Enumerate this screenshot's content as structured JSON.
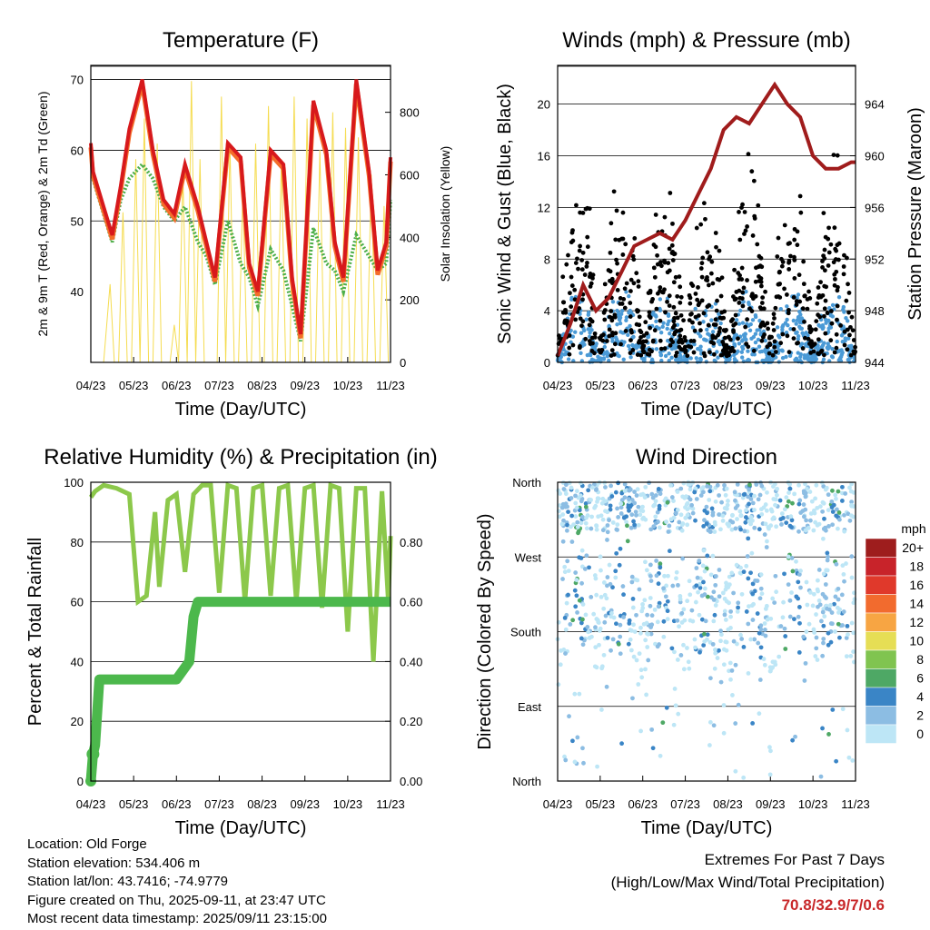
{
  "panels": {
    "temperature": {
      "title": "Temperature (F)",
      "ylabel_left": "2m & 9m T (Red, Orange) & 2m Td (Green)",
      "ylabel_right": "Solar Insolation (Yellow)",
      "xlabel": "Time (Day/UTC)"
    },
    "winds": {
      "title": "Winds (mph) & Pressure (mb)",
      "ylabel_left": "Sonic Wind & Gust (Blue, Black)",
      "ylabel_right": "Station Pressure (Maroon)",
      "xlabel": "Time (Day/UTC)"
    },
    "humidity": {
      "title": "Relative Humidity (%) & Precipitation (in)",
      "ylabel_left": "Percent & Total Rainfall",
      "xlabel": "Time (Day/UTC)"
    },
    "direction": {
      "title": "Wind Direction",
      "ylabel_left": "Direction (Colored By Speed)",
      "xlabel": "Time (Day/UTC)",
      "legend_title": "mph"
    }
  },
  "colors": {
    "temp_2m": "#d7191c",
    "temp_9m": "#f46d2a",
    "dewpoint": "#4daf4a",
    "insolation": "#f5dc50",
    "gust": "#000000",
    "wind": "#4a9ad6",
    "pressure": "#a01c1c",
    "rh": "#8cc84b",
    "precip": "#4cb84c"
  },
  "chart_data": [
    {
      "type": "line",
      "panel": "temperature",
      "x_ticks": [
        "04/23",
        "05/23",
        "06/23",
        "07/23",
        "08/23",
        "09/23",
        "10/23",
        "11/23"
      ],
      "xlim": [
        0,
        7
      ],
      "ylim": [
        30,
        72
      ],
      "yticks_left": [
        40,
        50,
        60,
        70
      ],
      "ylim_right": [
        0,
        950
      ],
      "yticks_right": [
        0,
        200,
        400,
        600,
        800
      ],
      "series": [
        {
          "key": "temp",
          "axis": "left",
          "x": [
            0,
            0.05,
            0.3,
            0.5,
            0.7,
            0.9,
            1.2,
            1.45,
            1.7,
            1.95,
            2.2,
            2.5,
            2.7,
            2.9,
            3.2,
            3.5,
            3.7,
            3.9,
            4.2,
            4.5,
            4.7,
            4.9,
            5.2,
            5.5,
            5.7,
            5.9,
            6.2,
            6.5,
            6.7,
            6.9,
            7.0
          ],
          "y": [
            61,
            57,
            52,
            48,
            55,
            63,
            70,
            60,
            53,
            51,
            58,
            52,
            47,
            42,
            61,
            59,
            44,
            40,
            60,
            58,
            42,
            34,
            67,
            60,
            47,
            42,
            70,
            57,
            43,
            47,
            59
          ]
        },
        {
          "key": "dewpoint",
          "axis": "left",
          "x": [
            0,
            0.05,
            0.3,
            0.5,
            0.7,
            0.9,
            1.2,
            1.45,
            1.7,
            1.95,
            2.2,
            2.5,
            2.7,
            2.9,
            3.2,
            3.5,
            3.7,
            3.9,
            4.2,
            4.5,
            4.7,
            4.9,
            5.2,
            5.5,
            5.7,
            5.9,
            6.2,
            6.5,
            6.7,
            6.9,
            7.0
          ],
          "y": [
            60,
            56,
            51,
            47,
            53,
            56,
            58,
            56,
            52,
            50,
            52,
            47,
            45,
            41,
            50,
            44,
            42,
            38,
            46,
            43,
            38,
            33,
            49,
            44,
            43,
            40,
            48,
            45,
            43,
            44,
            53
          ]
        },
        {
          "key": "insolation",
          "axis": "right",
          "x": [
            0.1,
            0.3,
            0.45,
            0.55,
            0.65,
            0.75,
            0.85,
            0.95,
            1.05,
            1.15,
            1.25,
            1.35,
            1.45,
            1.55,
            1.65,
            1.75,
            1.85,
            1.95,
            2.05,
            2.15,
            2.25,
            2.35,
            2.45,
            2.55,
            2.65,
            2.75,
            2.85,
            2.95,
            3.05,
            3.15,
            3.25,
            3.35,
            3.45,
            3.55,
            3.65,
            3.75,
            3.85,
            3.95,
            4.05,
            4.15,
            4.25,
            4.35,
            4.45,
            4.55,
            4.65,
            4.75,
            4.85,
            4.95,
            5.05,
            5.15,
            5.25,
            5.35,
            5.45,
            5.55,
            5.65,
            5.75,
            5.85,
            5.95,
            6.05,
            6.15,
            6.25,
            6.35,
            6.45,
            6.55,
            6.65,
            6.75,
            6.85,
            6.95
          ],
          "y": [
            0,
            0,
            250,
            0,
            0,
            480,
            0,
            0,
            650,
            0,
            780,
            0,
            0,
            700,
            0,
            0,
            0,
            120,
            0,
            600,
            0,
            900,
            0,
            650,
            0,
            0,
            0,
            0,
            850,
            0,
            700,
            0,
            0,
            550,
            0,
            0,
            700,
            0,
            0,
            820,
            0,
            0,
            650,
            0,
            0,
            850,
            0,
            0,
            780,
            0,
            0,
            680,
            0,
            0,
            800,
            0,
            0,
            750,
            0,
            0,
            720,
            0,
            0,
            600,
            0,
            0,
            500,
            0
          ]
        }
      ]
    },
    {
      "type": "line",
      "panel": "winds",
      "x_ticks": [
        "04/23",
        "05/23",
        "06/23",
        "07/23",
        "08/23",
        "09/23",
        "10/23",
        "11/23"
      ],
      "xlim": [
        0,
        7
      ],
      "ylim": [
        0,
        23
      ],
      "yticks_left": [
        0,
        4,
        8,
        12,
        16,
        20
      ],
      "ylim_right": [
        944,
        967
      ],
      "yticks_right": [
        944,
        948,
        952,
        956,
        960,
        964
      ],
      "series": [
        {
          "key": "pressure",
          "axis": "right",
          "x": [
            0,
            0.3,
            0.6,
            0.9,
            1.2,
            1.5,
            1.8,
            2.1,
            2.4,
            2.7,
            3.0,
            3.3,
            3.6,
            3.9,
            4.2,
            4.5,
            4.8,
            5.1,
            5.4,
            5.7,
            6.0,
            6.3,
            6.6,
            6.9,
            7.0
          ],
          "y": [
            944.5,
            947,
            950,
            948,
            949,
            951,
            953,
            953.5,
            954,
            953.5,
            955,
            957,
            959,
            962,
            963,
            962.5,
            964,
            965.5,
            964,
            963,
            960,
            959,
            959,
            959.5,
            959.5
          ]
        }
      ]
    },
    {
      "type": "line",
      "panel": "humidity",
      "x_ticks": [
        "04/23",
        "05/23",
        "06/23",
        "07/23",
        "08/23",
        "09/23",
        "10/23",
        "11/23"
      ],
      "xlim": [
        0,
        7
      ],
      "ylim": [
        0,
        100
      ],
      "yticks_left": [
        0,
        20,
        40,
        60,
        80,
        100
      ],
      "ylim_right": [
        0.0,
        1.0
      ],
      "yticks_right": [
        0.0,
        0.2,
        0.4,
        0.6,
        0.8
      ],
      "ytick_labels_right": [
        "0.00",
        "0.20",
        "0.40",
        "0.60",
        "0.80"
      ],
      "series": [
        {
          "key": "rh",
          "axis": "left",
          "x": [
            0,
            0.1,
            0.3,
            0.6,
            0.9,
            1.1,
            1.3,
            1.5,
            1.6,
            1.8,
            2.0,
            2.2,
            2.4,
            2.6,
            2.8,
            3.0,
            3.2,
            3.4,
            3.6,
            3.8,
            4.0,
            4.2,
            4.4,
            4.6,
            4.8,
            5.0,
            5.2,
            5.4,
            5.6,
            5.8,
            6.0,
            6.2,
            6.4,
            6.6,
            6.8,
            6.95,
            7.0
          ],
          "y": [
            95,
            97,
            99,
            98,
            96,
            60,
            62,
            90,
            65,
            94,
            96,
            70,
            96,
            99,
            99,
            63,
            99,
            98,
            60,
            98,
            99,
            62,
            98,
            99,
            60,
            98,
            99,
            58,
            99,
            98,
            50,
            98,
            98,
            40,
            97,
            60,
            82
          ]
        },
        {
          "key": "precip",
          "axis": "right",
          "x": [
            0,
            0.05,
            0.1,
            0.2,
            1.0,
            2.0,
            2.3,
            2.4,
            2.5,
            3.0,
            4.0,
            5.0,
            6.0,
            7.0
          ],
          "y": [
            0.0,
            0.09,
            0.12,
            0.34,
            0.34,
            0.34,
            0.4,
            0.55,
            0.6,
            0.6,
            0.6,
            0.6,
            0.6,
            0.6
          ]
        }
      ]
    },
    {
      "type": "scatter",
      "panel": "direction",
      "x_ticks": [
        "04/23",
        "05/23",
        "06/23",
        "07/23",
        "08/23",
        "09/23",
        "10/23",
        "11/23"
      ],
      "xlim": [
        0,
        7
      ],
      "ylim": [
        0,
        360
      ],
      "y_ticks": [
        "North",
        "East",
        "South",
        "West",
        "North"
      ],
      "color_scale": {
        "levels": [
          "20+",
          "18",
          "16",
          "14",
          "12",
          "10",
          "8",
          "6",
          "4",
          "2",
          "0"
        ],
        "colors": [
          "#9e1d1d",
          "#c8232a",
          "#e0392b",
          "#f26b2e",
          "#f7a543",
          "#e6de55",
          "#80c450",
          "#4ea865",
          "#3a85c6",
          "#8cbde3",
          "#bde6f6"
        ]
      }
    }
  ],
  "footer": {
    "location": "Location: Old Forge",
    "elevation": "Station elevation: 534.406 m",
    "latlon": "Station lat/lon: 43.7416; -74.9779",
    "created": "Figure created on Thu, 2025-09-11, at 23:47 UTC",
    "recent": "Most recent data timestamp: 2025/09/11 23:15:00",
    "extremes_title": "Extremes For Past 7 Days",
    "extremes_sub": "(High/Low/Max Wind/Total Precipitation)",
    "extremes_values": "70.8/32.9/7/0.6"
  }
}
